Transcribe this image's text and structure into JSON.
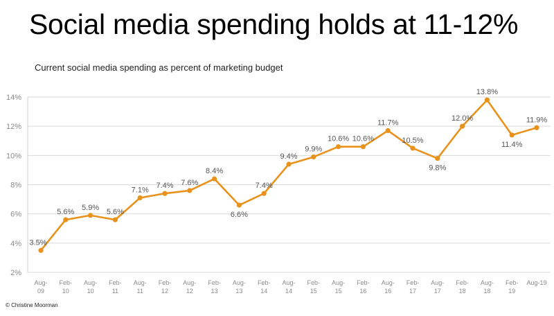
{
  "page": {
    "title": "Social media spending holds at 11-12%",
    "subtitle": "Current social media spending as percent of marketing budget",
    "footer": "© Christine Moorman"
  },
  "chart_data": {
    "type": "line",
    "title": "Social media spending holds at 11-12%",
    "subtitle": "Current social media spending as percent of marketing budget",
    "categories": [
      [
        "Aug-",
        "09"
      ],
      [
        "Feb-",
        "10"
      ],
      [
        "Aug-",
        "10"
      ],
      [
        "Feb-",
        "11"
      ],
      [
        "Aug-",
        "11"
      ],
      [
        "Feb-",
        "12"
      ],
      [
        "Aug-",
        "12"
      ],
      [
        "Feb-",
        "13"
      ],
      [
        "Aug-",
        "13"
      ],
      [
        "Feb-",
        "14"
      ],
      [
        "Aug-",
        "14"
      ],
      [
        "Feb-",
        "15"
      ],
      [
        "Aug-",
        "15"
      ],
      [
        "Feb-",
        "16"
      ],
      [
        "Aug-",
        "16"
      ],
      [
        "Feb-",
        "17"
      ],
      [
        "Aug-",
        "17"
      ],
      [
        "Feb-",
        "18"
      ],
      [
        "Aug-",
        "18"
      ],
      [
        "Feb-",
        "19"
      ],
      [
        "Aug-19"
      ]
    ],
    "series": [
      {
        "values": [
          3.5,
          5.6,
          5.9,
          5.6,
          7.1,
          7.4,
          7.6,
          8.4,
          6.6,
          7.4,
          9.4,
          9.9,
          10.6,
          10.6,
          11.7,
          10.5,
          9.8,
          12.0,
          13.8,
          11.4,
          11.9
        ],
        "labels": [
          "3.5%",
          "5.6%",
          "5.9%",
          "5.6%",
          "7.1%",
          "7.4%",
          "7.6%",
          "8.4%",
          "6.6%",
          "7.4%",
          "9.4%",
          "9.9%",
          "10.6%",
          "10.6%",
          "11.7%",
          "10.5%",
          "9.8%",
          "12.0%",
          "13.8%",
          "11.4%",
          "11.9%"
        ],
        "label_position": [
          "above",
          "above",
          "above",
          "above",
          "above",
          "above",
          "above",
          "above",
          "below",
          "above",
          "above",
          "above",
          "above",
          "above",
          "above",
          "above",
          "below",
          "above",
          "above",
          "below",
          "above"
        ],
        "color": "#E8921C"
      }
    ],
    "yticks": [
      "2%",
      "4%",
      "6%",
      "8%",
      "10%",
      "12%",
      "14%"
    ],
    "ylim": [
      2,
      14
    ],
    "grid": true,
    "legend": "none"
  }
}
